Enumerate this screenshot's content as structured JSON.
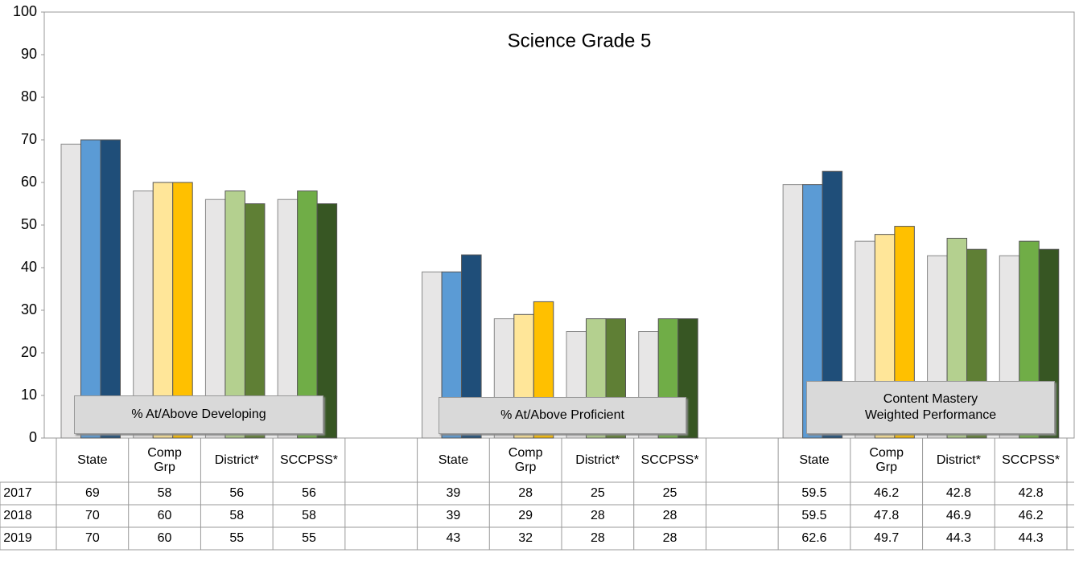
{
  "chart_data": {
    "type": "bar",
    "title": "Science Grade 5",
    "categories": [
      "State",
      "Comp\nGrp",
      "District*",
      "SCCPSS*",
      null,
      "State",
      "Comp\nGrp",
      "District*",
      "SCCPSS*",
      null,
      "State",
      "Comp\nGrp",
      "District*",
      "SCCPSS*"
    ],
    "series": [
      {
        "name": "2017",
        "values": [
          69,
          58,
          56,
          56,
          null,
          39,
          28,
          25,
          25,
          null,
          59.5,
          46.2,
          42.8,
          42.8
        ],
        "colors": [
          "#e7e6e6",
          "#e7e6e6",
          "#e7e6e6",
          "#e7e6e6",
          null,
          "#e7e6e6",
          "#e7e6e6",
          "#e7e6e6",
          "#e7e6e6",
          null,
          "#e7e6e6",
          "#e7e6e6",
          "#e7e6e6",
          "#e7e6e6"
        ]
      },
      {
        "name": "2018",
        "values": [
          70,
          60,
          58,
          58,
          null,
          39,
          29,
          28,
          28,
          null,
          59.5,
          47.8,
          46.9,
          46.2
        ],
        "colors": [
          "#5b9bd5",
          "#ffe699",
          "#b4d08f",
          "#70ad47",
          null,
          "#5b9bd5",
          "#ffe699",
          "#b4d08f",
          "#70ad47",
          null,
          "#5b9bd5",
          "#ffe699",
          "#b4d08f",
          "#70ad47"
        ]
      },
      {
        "name": "2019",
        "values": [
          70,
          60,
          55,
          55,
          null,
          43,
          32,
          28,
          28,
          null,
          62.6,
          49.7,
          44.3,
          44.3
        ],
        "colors": [
          "#1f4e79",
          "#ffc000",
          "#5f7f35",
          "#375623",
          null,
          "#1f4e79",
          "#ffc000",
          "#5f7f35",
          "#375623",
          null,
          "#1f4e79",
          "#ffc000",
          "#5f7f35",
          "#375623"
        ]
      }
    ],
    "annotations": [
      "% At/Above  Developing",
      "% At/Above  Proficient",
      "Content Mastery\nWeighted Performance"
    ],
    "ylim": [
      0,
      100
    ],
    "yticks": [
      0,
      10,
      20,
      30,
      40,
      50,
      60,
      70,
      80,
      90,
      100
    ],
    "grid": false
  }
}
